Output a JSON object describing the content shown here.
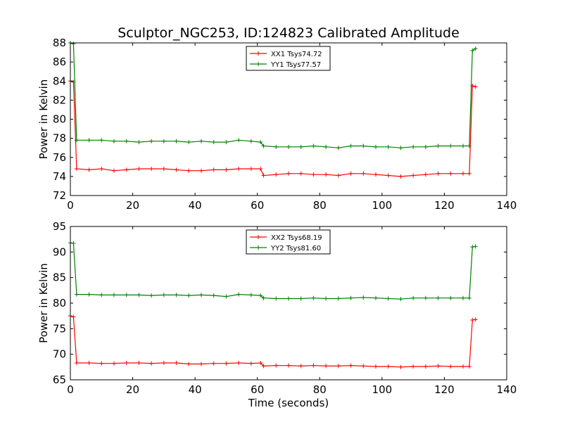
{
  "figure": {
    "title": "Sculptor_NGC253, ID:124823 Calibrated Amplitude",
    "xlabel": "Time (seconds)"
  },
  "chart_data": [
    {
      "type": "line",
      "ylabel": "Power in Kelvin",
      "xlim": [
        0,
        140
      ],
      "ylim": [
        72,
        88
      ],
      "xticks": [
        "0",
        "20",
        "40",
        "60",
        "80",
        "100",
        "120",
        "140"
      ],
      "yticks": [
        "72",
        "74",
        "76",
        "78",
        "80",
        "82",
        "84",
        "86",
        "88"
      ],
      "legend_position": "top-center",
      "series": [
        {
          "name": "XX1 Tsys74.72",
          "color": "#ff0000",
          "points": [
            [
              0,
              84.0
            ],
            [
              1,
              83.9
            ],
            [
              2,
              74.8
            ],
            [
              6,
              74.7
            ],
            [
              10,
              74.8
            ],
            [
              14,
              74.6
            ],
            [
              18,
              74.7
            ],
            [
              22,
              74.8
            ],
            [
              26,
              74.8
            ],
            [
              30,
              74.8
            ],
            [
              34,
              74.7
            ],
            [
              38,
              74.6
            ],
            [
              42,
              74.6
            ],
            [
              46,
              74.7
            ],
            [
              50,
              74.7
            ],
            [
              54,
              74.8
            ],
            [
              58,
              74.8
            ],
            [
              61,
              74.8
            ],
            [
              62,
              74.1
            ],
            [
              66,
              74.2
            ],
            [
              70,
              74.3
            ],
            [
              74,
              74.3
            ],
            [
              78,
              74.2
            ],
            [
              82,
              74.2
            ],
            [
              86,
              74.1
            ],
            [
              90,
              74.3
            ],
            [
              94,
              74.3
            ],
            [
              98,
              74.2
            ],
            [
              102,
              74.1
            ],
            [
              106,
              74.0
            ],
            [
              110,
              74.1
            ],
            [
              114,
              74.2
            ],
            [
              118,
              74.3
            ],
            [
              122,
              74.3
            ],
            [
              126,
              74.3
            ],
            [
              128,
              74.3
            ],
            [
              129,
              83.5
            ],
            [
              130,
              83.4
            ]
          ]
        },
        {
          "name": "YY1 Tsys77.57",
          "color": "#008000",
          "points": [
            [
              0,
              88.0
            ],
            [
              1,
              87.9
            ],
            [
              2,
              77.8
            ],
            [
              6,
              77.8
            ],
            [
              10,
              77.8
            ],
            [
              14,
              77.7
            ],
            [
              18,
              77.7
            ],
            [
              22,
              77.6
            ],
            [
              26,
              77.7
            ],
            [
              30,
              77.7
            ],
            [
              34,
              77.7
            ],
            [
              38,
              77.6
            ],
            [
              42,
              77.7
            ],
            [
              46,
              77.6
            ],
            [
              50,
              77.6
            ],
            [
              54,
              77.8
            ],
            [
              58,
              77.7
            ],
            [
              61,
              77.6
            ],
            [
              62,
              77.2
            ],
            [
              66,
              77.1
            ],
            [
              70,
              77.1
            ],
            [
              74,
              77.1
            ],
            [
              78,
              77.2
            ],
            [
              82,
              77.1
            ],
            [
              86,
              77.0
            ],
            [
              90,
              77.2
            ],
            [
              94,
              77.2
            ],
            [
              98,
              77.1
            ],
            [
              102,
              77.1
            ],
            [
              106,
              77.0
            ],
            [
              110,
              77.1
            ],
            [
              114,
              77.1
            ],
            [
              118,
              77.2
            ],
            [
              122,
              77.2
            ],
            [
              126,
              77.2
            ],
            [
              128,
              77.2
            ],
            [
              129,
              87.2
            ],
            [
              130,
              87.4
            ]
          ]
        }
      ]
    },
    {
      "type": "line",
      "ylabel": "Power in Kelvin",
      "xlim": [
        0,
        140
      ],
      "ylim": [
        65,
        95
      ],
      "xticks": [
        "0",
        "20",
        "40",
        "60",
        "80",
        "100",
        "120",
        "140"
      ],
      "yticks": [
        "65",
        "70",
        "75",
        "80",
        "85",
        "90",
        "95"
      ],
      "legend_position": "top-center",
      "series": [
        {
          "name": "XX2 Tsys68.19",
          "color": "#ff0000",
          "points": [
            [
              0,
              77.5
            ],
            [
              1,
              77.3
            ],
            [
              2,
              68.3
            ],
            [
              6,
              68.3
            ],
            [
              10,
              68.2
            ],
            [
              14,
              68.2
            ],
            [
              18,
              68.3
            ],
            [
              22,
              68.3
            ],
            [
              26,
              68.2
            ],
            [
              30,
              68.3
            ],
            [
              34,
              68.3
            ],
            [
              38,
              68.1
            ],
            [
              42,
              68.1
            ],
            [
              46,
              68.2
            ],
            [
              50,
              68.2
            ],
            [
              54,
              68.3
            ],
            [
              58,
              68.2
            ],
            [
              61,
              68.3
            ],
            [
              62,
              67.7
            ],
            [
              66,
              67.8
            ],
            [
              70,
              67.8
            ],
            [
              74,
              67.7
            ],
            [
              78,
              67.8
            ],
            [
              82,
              67.7
            ],
            [
              86,
              67.7
            ],
            [
              90,
              67.8
            ],
            [
              94,
              67.7
            ],
            [
              98,
              67.6
            ],
            [
              102,
              67.6
            ],
            [
              106,
              67.5
            ],
            [
              110,
              67.6
            ],
            [
              114,
              67.6
            ],
            [
              118,
              67.7
            ],
            [
              122,
              67.6
            ],
            [
              126,
              67.6
            ],
            [
              128,
              67.6
            ],
            [
              129,
              76.7
            ],
            [
              130,
              76.8
            ]
          ]
        },
        {
          "name": "YY2 Tsys81.60",
          "color": "#008000",
          "points": [
            [
              0,
              91.8
            ],
            [
              1,
              91.7
            ],
            [
              2,
              81.7
            ],
            [
              6,
              81.7
            ],
            [
              10,
              81.6
            ],
            [
              14,
              81.6
            ],
            [
              18,
              81.6
            ],
            [
              22,
              81.6
            ],
            [
              26,
              81.5
            ],
            [
              30,
              81.6
            ],
            [
              34,
              81.6
            ],
            [
              38,
              81.5
            ],
            [
              42,
              81.6
            ],
            [
              46,
              81.5
            ],
            [
              50,
              81.3
            ],
            [
              54,
              81.7
            ],
            [
              58,
              81.6
            ],
            [
              61,
              81.5
            ],
            [
              62,
              81.0
            ],
            [
              66,
              80.9
            ],
            [
              70,
              80.9
            ],
            [
              74,
              80.9
            ],
            [
              78,
              81.0
            ],
            [
              82,
              80.9
            ],
            [
              86,
              80.9
            ],
            [
              90,
              81.0
            ],
            [
              94,
              81.1
            ],
            [
              98,
              81.0
            ],
            [
              102,
              80.9
            ],
            [
              106,
              80.8
            ],
            [
              110,
              81.0
            ],
            [
              114,
              81.0
            ],
            [
              118,
              81.0
            ],
            [
              122,
              81.0
            ],
            [
              126,
              81.0
            ],
            [
              128,
              81.0
            ],
            [
              129,
              91.0
            ],
            [
              130,
              91.1
            ]
          ]
        }
      ]
    }
  ]
}
